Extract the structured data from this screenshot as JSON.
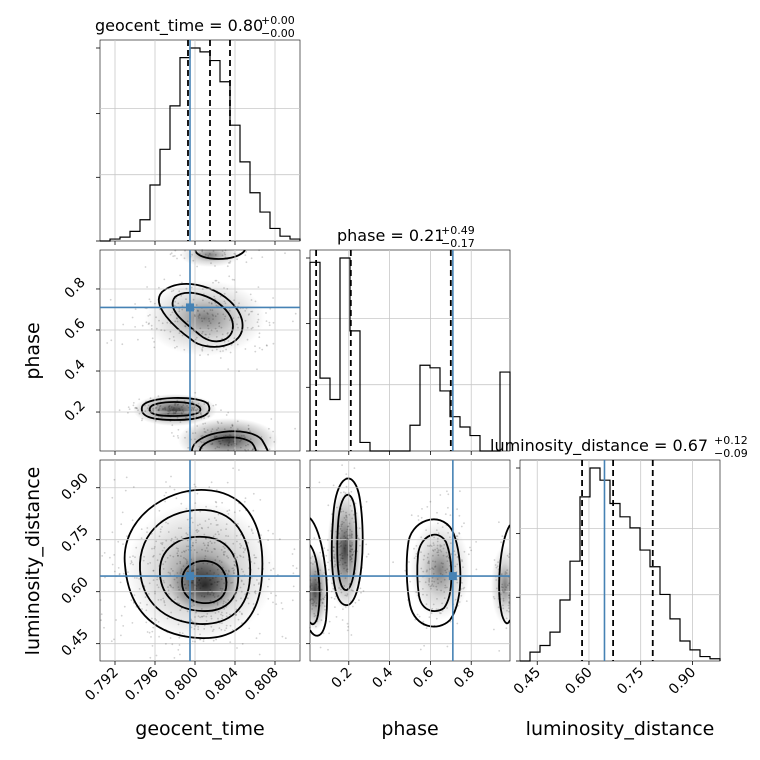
{
  "chart_data": {
    "type": "corner",
    "params": [
      "geocent_time",
      "phase",
      "luminosity_distance"
    ],
    "truth_color": "#4682b4",
    "titles": [
      {
        "label": "geocent_time = 0.80",
        "upper": "+0.00",
        "lower": "−0.00"
      },
      {
        "label": "phase = 0.21",
        "upper": "+0.49",
        "lower": "−0.17"
      },
      {
        "label": "luminosity_distance = 0.67",
        "upper": "+0.12",
        "lower": "−0.09"
      }
    ],
    "axes": {
      "geocent_time": {
        "range": [
          0.7905,
          0.8105
        ],
        "ticks": [
          0.792,
          0.796,
          0.8,
          0.804,
          0.808
        ],
        "tick_labels": [
          "0.792",
          "0.796",
          "0.800",
          "0.804",
          "0.808"
        ]
      },
      "phase": {
        "range": [
          0.01,
          0.99
        ],
        "ticks": [
          0.2,
          0.4,
          0.6,
          0.8
        ],
        "tick_labels": [
          "0.2",
          "0.4",
          "0.6",
          "0.8"
        ]
      },
      "luminosity_distance": {
        "range": [
          0.4,
          0.98
        ],
        "ticks": [
          0.45,
          0.6,
          0.75,
          0.9
        ],
        "tick_labels": [
          "0.45",
          "0.60",
          "0.75",
          "0.90"
        ]
      }
    },
    "truths": {
      "geocent_time": 0.7995,
      "phase": 0.71,
      "luminosity_distance": 0.645
    },
    "quantiles": {
      "geocent_time": [
        0.7993,
        0.8015,
        0.8035
      ],
      "phase": [
        0.04,
        0.21,
        0.7
      ],
      "luminosity_distance": [
        0.58,
        0.67,
        0.785
      ]
    },
    "histograms": {
      "geocent_time": {
        "edges": [
          0.7905,
          0.7915,
          0.7925,
          0.7935,
          0.7945,
          0.7955,
          0.7965,
          0.7975,
          0.7985,
          0.7995,
          0.8005,
          0.8015,
          0.8025,
          0.8035,
          0.8045,
          0.8055,
          0.8065,
          0.8075,
          0.8085,
          0.8095,
          0.8105
        ],
        "counts": [
          0,
          2,
          4,
          10,
          22,
          58,
          95,
          140,
          190,
          200,
          196,
          187,
          165,
          120,
          82,
          50,
          30,
          13,
          5,
          2
        ]
      },
      "phase": {
        "edges": [
          0.01,
          0.059,
          0.108,
          0.157,
          0.206,
          0.255,
          0.304,
          0.353,
          0.402,
          0.451,
          0.5,
          0.549,
          0.598,
          0.647,
          0.696,
          0.745,
          0.794,
          0.843,
          0.892,
          0.941,
          0.99
        ],
        "counts": [
          220,
          85,
          60,
          225,
          140,
          10,
          0,
          0,
          0,
          0,
          30,
          100,
          97,
          70,
          40,
          28,
          18,
          0,
          0,
          92
        ]
      },
      "luminosity_distance": {
        "edges": [
          0.4,
          0.429,
          0.458,
          0.487,
          0.516,
          0.545,
          0.574,
          0.603,
          0.632,
          0.661,
          0.69,
          0.719,
          0.748,
          0.777,
          0.806,
          0.835,
          0.864,
          0.893,
          0.922,
          0.951,
          0.98
        ],
        "counts": [
          0,
          8,
          14,
          26,
          55,
          90,
          148,
          174,
          163,
          142,
          130,
          120,
          100,
          85,
          60,
          38,
          18,
          10,
          4,
          2
        ]
      }
    },
    "grid": true
  }
}
